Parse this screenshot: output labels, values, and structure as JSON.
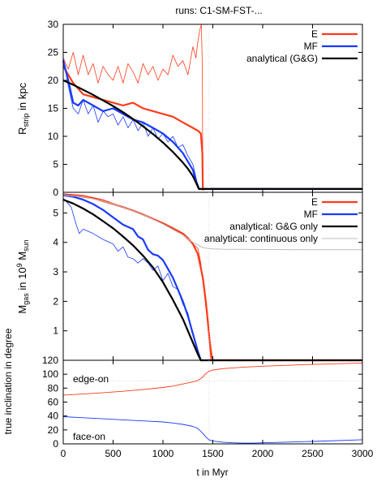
{
  "header": {
    "title": "runs: C1-SM-FST-..."
  },
  "chart_data": [
    {
      "id": "rstrip",
      "type": "line",
      "ylabel": "R",
      "ylabel_sub": "strip",
      "ylabel_suffix": " in kpc",
      "xlim": [
        0,
        3000
      ],
      "ylim": [
        0,
        30
      ],
      "yticks": [
        "0",
        "5",
        "10",
        "15",
        "20",
        "25",
        "30"
      ],
      "grid": false,
      "legend_position": "top-right",
      "legend": [
        {
          "label": "E",
          "color": "#ff3a1a"
        },
        {
          "label": "MF",
          "color": "#1a3aff"
        },
        {
          "label": "analytical (G&G)",
          "color": "#000000"
        }
      ],
      "series": [
        {
          "name": "E",
          "color": "#ff3a1a",
          "width": 2.2,
          "x": [
            0,
            50,
            100,
            200,
            300,
            400,
            500,
            600,
            700,
            800,
            900,
            1000,
            1100,
            1200,
            1300,
            1350,
            1380,
            1395,
            1400,
            1420,
            1500,
            2000,
            2500,
            3000
          ],
          "y": [
            22.5,
            21,
            19.5,
            17.5,
            17,
            16.5,
            16,
            15.5,
            16,
            15,
            14.5,
            14,
            13.5,
            12.5,
            11.5,
            11,
            10.5,
            7,
            0.5,
            0.6,
            0.6,
            0.6,
            0.6,
            0.6
          ]
        },
        {
          "name": "E (thin)",
          "color": "#ff3a1a",
          "width": 0.8,
          "x": [
            0,
            50,
            100,
            150,
            200,
            250,
            300,
            350,
            400,
            450,
            500,
            550,
            600,
            650,
            700,
            750,
            800,
            850,
            900,
            950,
            1000,
            1050,
            1100,
            1150,
            1200,
            1250,
            1300,
            1330,
            1350,
            1370,
            1385,
            1395,
            1400
          ],
          "y": [
            24,
            22,
            25,
            21,
            24.5,
            21,
            23,
            19.5,
            22.5,
            21,
            20,
            22.5,
            19.5,
            23,
            21.5,
            19.5,
            23,
            21,
            22.5,
            20,
            22,
            21,
            24.5,
            22.5,
            23.5,
            21,
            26,
            24,
            27,
            29,
            30,
            22,
            0.5
          ]
        },
        {
          "name": "MF",
          "color": "#1a3aff",
          "width": 2.2,
          "x": [
            0,
            50,
            100,
            150,
            200,
            300,
            400,
            500,
            600,
            700,
            800,
            900,
            1000,
            1100,
            1200,
            1300,
            1340,
            1360,
            1380,
            1500,
            2000,
            2500,
            3000
          ],
          "y": [
            23.5,
            20,
            16,
            15.5,
            16.5,
            15.5,
            14.5,
            15,
            14,
            13,
            12.5,
            11.5,
            10.5,
            9,
            7,
            4,
            1.5,
            0.6,
            0.6,
            0.6,
            0.6,
            0.6,
            0.6
          ]
        },
        {
          "name": "MF (thin)",
          "color": "#1a3aff",
          "width": 0.8,
          "x": [
            0,
            50,
            100,
            150,
            200,
            250,
            300,
            350,
            400,
            450,
            500,
            550,
            600,
            650,
            700,
            750,
            800,
            850,
            900,
            950,
            1000,
            1050,
            1100,
            1150,
            1200,
            1250,
            1300,
            1340,
            1370
          ],
          "y": [
            24,
            19,
            15,
            14,
            16.5,
            14,
            15.5,
            12.5,
            14.5,
            13.5,
            14,
            12,
            13.5,
            11.5,
            13,
            11,
            12.5,
            10,
            11.5,
            9.5,
            10.5,
            9,
            10,
            8,
            8.5,
            6.5,
            5,
            2,
            0.5
          ]
        },
        {
          "name": "analytical (G&G)",
          "color": "#000000",
          "width": 2.2,
          "x": [
            0,
            100,
            200,
            300,
            400,
            500,
            600,
            700,
            800,
            900,
            1000,
            1100,
            1200,
            1250,
            1300,
            1340,
            1360,
            1380,
            1500,
            2000,
            2500,
            3000
          ],
          "y": [
            20,
            19.2,
            18.3,
            17.4,
            16.4,
            15.4,
            14.3,
            13.1,
            11.8,
            10.4,
            8.9,
            7.2,
            5.3,
            4.2,
            2.9,
            1.4,
            0.6,
            0.6,
            0.6,
            0.6,
            0.6,
            0.6
          ]
        }
      ]
    },
    {
      "id": "mgas",
      "type": "line",
      "ylabel": "M",
      "ylabel_sub": "gas",
      "ylabel_mid": " in 10",
      "ylabel_sup": "9",
      "ylabel_suffix": " M",
      "ylabel_sub2": "sun",
      "xlim": [
        0,
        3000
      ],
      "ylim": [
        0,
        5.7
      ],
      "yticks": [
        "1",
        "2",
        "3",
        "4",
        "5"
      ],
      "grid": false,
      "legend_position": "top-right",
      "legend": [
        {
          "label": "E",
          "color": "#ff3a1a"
        },
        {
          "label": "MF",
          "color": "#1a3aff"
        },
        {
          "label": "analytical: G&G only",
          "color": "#000000"
        },
        {
          "label": "analytical: continuous only",
          "color": "#bbbbbb"
        }
      ],
      "series": [
        {
          "name": "E",
          "color": "#ff3a1a",
          "width": 2.2,
          "x": [
            0,
            100,
            200,
            300,
            400,
            500,
            600,
            700,
            800,
            900,
            1000,
            1100,
            1200,
            1250,
            1300,
            1350,
            1400,
            1430,
            1450,
            1470,
            1490,
            1500,
            2000,
            3000
          ],
          "y": [
            5.6,
            5.6,
            5.55,
            5.5,
            5.4,
            5.3,
            5.2,
            5.08,
            4.95,
            4.8,
            4.65,
            4.48,
            4.3,
            4.15,
            3.95,
            3.6,
            2.8,
            2,
            1.3,
            0.6,
            0.1,
            0,
            0,
            0
          ]
        },
        {
          "name": "E (thin)",
          "color": "#ff3a1a",
          "width": 0.8,
          "x": [
            0,
            200,
            400,
            600,
            800,
            1000,
            1200,
            1300,
            1350,
            1380,
            1410,
            1440,
            1460,
            1480
          ],
          "y": [
            5.65,
            5.6,
            5.45,
            5.2,
            4.95,
            4.62,
            4.25,
            3.95,
            3.8,
            3.3,
            2.4,
            1.5,
            0.8,
            0
          ]
        },
        {
          "name": "MF",
          "color": "#1a3aff",
          "width": 2.2,
          "x": [
            0,
            100,
            200,
            300,
            400,
            500,
            600,
            700,
            750,
            800,
            850,
            900,
            950,
            1000,
            1050,
            1100,
            1150,
            1200,
            1250,
            1300,
            1350,
            1380,
            1400
          ],
          "y": [
            5.6,
            5.55,
            5.45,
            5.3,
            5.1,
            4.85,
            4.6,
            4.45,
            4.2,
            4.1,
            3.75,
            3.6,
            3.55,
            3.4,
            3.1,
            2.8,
            2.4,
            2,
            1.5,
            0.9,
            0.3,
            0,
            0
          ]
        },
        {
          "name": "MF (thin)",
          "color": "#1a3aff",
          "width": 0.8,
          "x": [
            0,
            80,
            130,
            160,
            200,
            300,
            400,
            500,
            550,
            600,
            650,
            700,
            750,
            800,
            850,
            900,
            950,
            1000,
            1050,
            1100,
            1150,
            1200,
            1250,
            1300,
            1350,
            1380
          ],
          "y": [
            5.5,
            5.2,
            4.6,
            4.3,
            4.45,
            4.3,
            4.1,
            3.95,
            3.7,
            3.85,
            3.5,
            3.45,
            3.3,
            3.45,
            3.3,
            3.05,
            3.2,
            2.7,
            2.95,
            2.5,
            2.4,
            1.9,
            1.6,
            0.9,
            0.3,
            0
          ]
        },
        {
          "name": "analytical: G&G only",
          "color": "#000000",
          "width": 2.2,
          "x": [
            0,
            100,
            200,
            300,
            400,
            500,
            600,
            700,
            800,
            900,
            1000,
            1100,
            1200,
            1300,
            1350,
            1380,
            1500,
            2000,
            2500,
            3000
          ],
          "y": [
            5.45,
            5.32,
            5.15,
            4.95,
            4.72,
            4.48,
            4.2,
            3.9,
            3.55,
            3.15,
            2.65,
            2.05,
            1.4,
            0.6,
            0.2,
            0,
            0,
            0,
            0,
            0
          ]
        },
        {
          "name": "analytical: continuous only",
          "color": "#bbbbbb",
          "width": 1,
          "x": [
            0,
            200,
            400,
            600,
            800,
            1000,
            1200,
            1300,
            1400,
            1500,
            1600,
            2000,
            2500,
            3000
          ],
          "y": [
            5.6,
            5.55,
            5.4,
            5.2,
            4.95,
            4.62,
            4.25,
            4.0,
            3.82,
            3.78,
            3.77,
            3.76,
            3.75,
            3.75
          ]
        }
      ]
    },
    {
      "id": "incl",
      "type": "line",
      "ylabel": "true inclination in degree",
      "xlabel": "t in Myr",
      "xlim": [
        0,
        3000
      ],
      "ylim": [
        0,
        120
      ],
      "xticks": [
        "0",
        "500",
        "1000",
        "1500",
        "2000",
        "2500",
        "3000"
      ],
      "yticks": [
        "0",
        "20",
        "40",
        "60",
        "80",
        "100",
        "120"
      ],
      "grid": false,
      "annotations": [
        "edge-on",
        "face-on"
      ],
      "reference_lines": [
        90,
        0
      ],
      "series": [
        {
          "name": "E",
          "color": "#ff3a1a",
          "width": 0.9,
          "x": [
            0,
            200,
            400,
            600,
            800,
            1000,
            1100,
            1200,
            1300,
            1350,
            1400,
            1430,
            1460,
            1500,
            1600,
            1800,
            2000,
            2500,
            3000
          ],
          "y": [
            70,
            71.5,
            73.5,
            75.5,
            78,
            81,
            83,
            86,
            89,
            91,
            96,
            101,
            104,
            106,
            108,
            110,
            111.5,
            114,
            116
          ]
        },
        {
          "name": "MF",
          "color": "#1a3aff",
          "width": 0.9,
          "x": [
            0,
            200,
            400,
            600,
            800,
            1000,
            1100,
            1200,
            1300,
            1350,
            1400,
            1430,
            1460,
            1500,
            1600,
            1700,
            1800,
            1900,
            2000,
            2500,
            3000
          ],
          "y": [
            39,
            37.5,
            36,
            34.5,
            33,
            31.5,
            30,
            28,
            25,
            22,
            15,
            10,
            6,
            4,
            2.5,
            1.5,
            1,
            1,
            1.5,
            3.5,
            6
          ]
        }
      ]
    }
  ]
}
